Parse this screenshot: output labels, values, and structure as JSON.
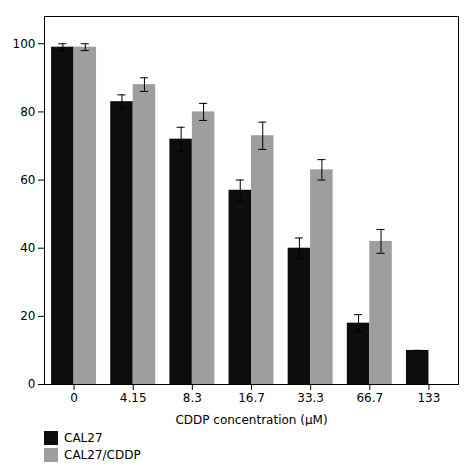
{
  "chart_data": {
    "type": "bar",
    "xlabel": "CDDP concentration (μM)",
    "categories": [
      "0",
      "4.15",
      "8.3",
      "16.7",
      "33.3",
      "66.7",
      "133"
    ],
    "series": [
      {
        "name": "CAL27",
        "color": "#0d0d0d",
        "values": [
          99,
          83,
          72,
          57,
          40,
          18,
          10
        ],
        "errors": [
          1.0,
          2.0,
          3.5,
          3.0,
          3.0,
          2.5,
          0
        ]
      },
      {
        "name": "CAL27/CDDP",
        "color": "#9e9e9e",
        "values": [
          99,
          88,
          80,
          73,
          63,
          42,
          0
        ],
        "errors": [
          1.0,
          2.0,
          2.5,
          4.0,
          3.0,
          3.5,
          0
        ]
      }
    ],
    "ylim": [
      0,
      108
    ],
    "yticks": [
      0,
      20,
      40,
      60,
      80,
      100
    ],
    "grid": false,
    "legend": "below"
  }
}
